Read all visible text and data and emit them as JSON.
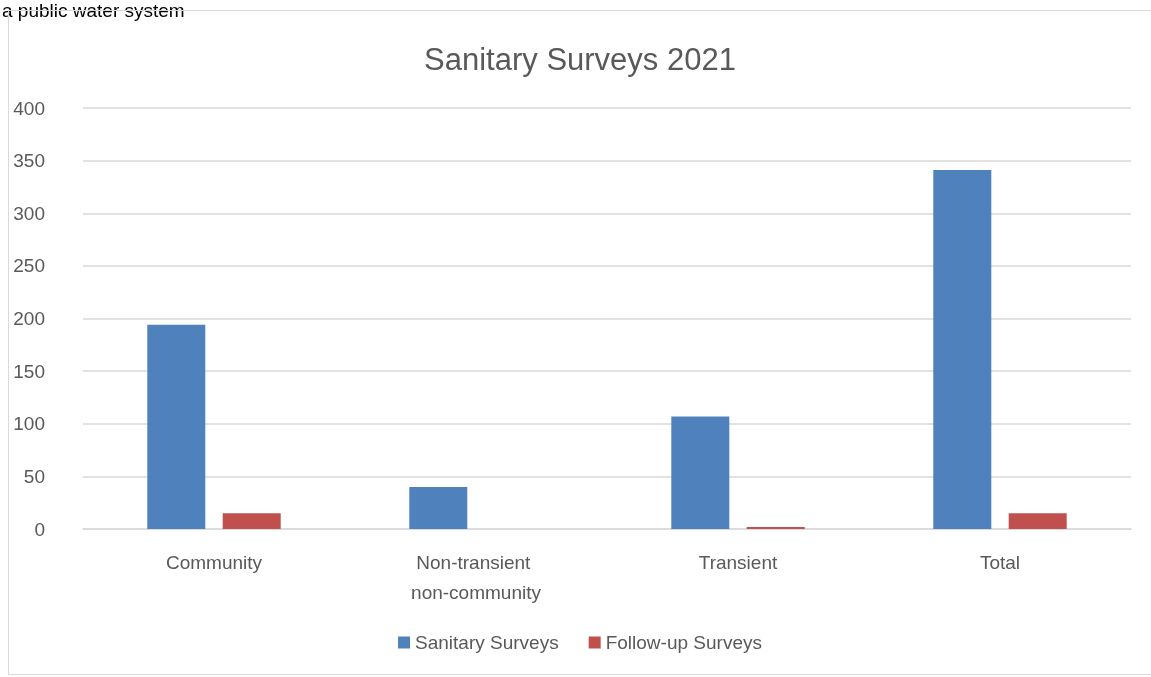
{
  "chart_data": {
    "type": "bar",
    "title": "Sanitary Surveys 2021",
    "annotations": [
      "a public water system"
    ],
    "categories": [
      "Community",
      "Non-transient non-community",
      "Transient",
      "Total"
    ],
    "series": [
      {
        "name": "Sanitary Surveys",
        "color": "#4f81bd",
        "values": [
          194,
          40,
          107,
          341
        ]
      },
      {
        "name": "Follow-up Surveys",
        "color": "#c0504d",
        "values": [
          15,
          0,
          2,
          15
        ]
      }
    ],
    "ylim": [
      0,
      400
    ],
    "yticks": [
      0,
      50,
      100,
      150,
      200,
      250,
      300,
      350,
      400
    ],
    "grid": "y",
    "legend": "bottom"
  }
}
